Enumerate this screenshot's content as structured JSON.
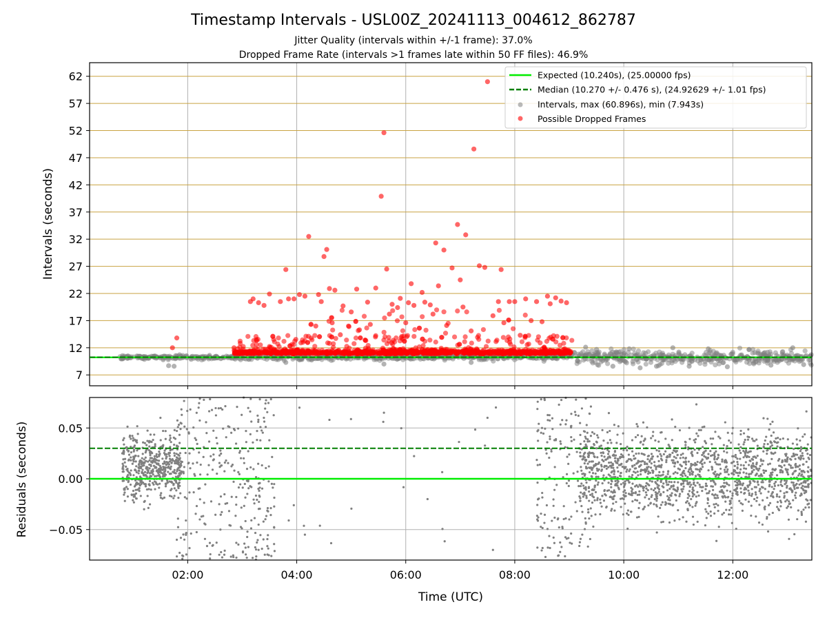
{
  "figure": {
    "title": "Timestamp Intervals - USL00Z_20241113_004612_862787",
    "subtitle_1": "Jitter Quality (intervals within +/-1 frame): 37.0%",
    "subtitle_2": "Dropped Frame Rate (intervals >1 frames late within 50 FF files): 46.9%"
  },
  "colors": {
    "expected": "#00ee00",
    "median": "#007f00",
    "intervals": "#808080",
    "dropped": "#ff0000",
    "hgrid_top": "#c8a240",
    "grid": "#b0b0b0"
  },
  "chart_data": [
    {
      "type": "scatter",
      "panel": "top",
      "ylabel": "Intervals (seconds)",
      "xlabel": "",
      "ylim": [
        5.0,
        64.5
      ],
      "xlim_hours": [
        0.2,
        13.45
      ],
      "yticks": [
        "7",
        "12",
        "17",
        "22",
        "27",
        "32",
        "37",
        "42",
        "47",
        "52",
        "57",
        "62"
      ],
      "ytick_values": [
        7,
        12,
        17,
        22,
        27,
        32,
        37,
        42,
        47,
        52,
        57,
        62
      ],
      "grid": "horizontal at every tick, vertical at every x tick",
      "legend_position": "top-right",
      "legend": [
        {
          "label": "Expected (10.240s), (25.00000 fps)",
          "kind": "solid-line"
        },
        {
          "label": "Median (10.270 +/- 0.476 s), (24.92629 +/- 1.01 fps)",
          "kind": "dashed-line"
        },
        {
          "label": "Intervals, max (60.896s), min (7.943s)",
          "kind": "grey-marker"
        },
        {
          "label": "Possible Dropped Frames",
          "kind": "red-marker"
        }
      ],
      "expected_interval": 10.24,
      "median_interval": 10.27,
      "series": [
        {
          "name": "Intervals, max (60.896s), min (7.943s)",
          "summary": "dense band near 10.2-10.5 s from 00:45 to 13:25; spread 8.2-12.5 s after 09:05",
          "points": [
            [
              1.3,
              10.3
            ],
            [
              1.55,
              9.8
            ],
            [
              1.65,
              8.7
            ],
            [
              1.75,
              8.6
            ],
            [
              1.85,
              10.7
            ],
            [
              2.4,
              10.6
            ],
            [
              3.0,
              10.7
            ],
            [
              3.8,
              9.3
            ],
            [
              5.6,
              9.0
            ],
            [
              7.2,
              9.3
            ],
            [
              9.15,
              9.6
            ],
            [
              9.3,
              12.1
            ],
            [
              9.5,
              11.7
            ],
            [
              9.8,
              8.6
            ],
            [
              10.1,
              11.8
            ],
            [
              10.3,
              8.3
            ],
            [
              10.6,
              8.6
            ],
            [
              10.9,
              12.0
            ],
            [
              11.2,
              8.6
            ],
            [
              11.55,
              11.8
            ],
            [
              11.9,
              8.5
            ],
            [
              12.3,
              11.7
            ],
            [
              12.7,
              8.8
            ],
            [
              13.1,
              12.0
            ],
            [
              13.3,
              8.9
            ]
          ]
        },
        {
          "name": "Possible Dropped Frames",
          "summary": "dense band ~10.5-11.5 s between 02:50 and 09:05 with outliers up to 60.9 s",
          "points": [
            [
              1.72,
              12.0
            ],
            [
              1.8,
              13.8
            ],
            [
              2.85,
              12.0
            ],
            [
              3.15,
              20.5
            ],
            [
              3.2,
              21.0
            ],
            [
              3.3,
              20.3
            ],
            [
              3.4,
              19.8
            ],
            [
              3.5,
              21.9
            ],
            [
              3.7,
              20.5
            ],
            [
              3.8,
              26.4
            ],
            [
              3.85,
              21.0
            ],
            [
              3.95,
              21.0
            ],
            [
              4.05,
              21.8
            ],
            [
              4.15,
              21.5
            ],
            [
              4.22,
              32.5
            ],
            [
              4.35,
              16.0
            ],
            [
              4.4,
              21.8
            ],
            [
              4.45,
              20.5
            ],
            [
              4.5,
              28.8
            ],
            [
              4.55,
              30.1
            ],
            [
              4.6,
              22.9
            ],
            [
              4.65,
              16.6
            ],
            [
              4.7,
              22.6
            ],
            [
              4.8,
              14.4
            ],
            [
              4.85,
              19.7
            ],
            [
              4.95,
              16.0
            ],
            [
              5.0,
              18.6
            ],
            [
              5.1,
              22.8
            ],
            [
              5.15,
              15.3
            ],
            [
              5.3,
              20.4
            ],
            [
              5.35,
              16.3
            ],
            [
              5.45,
              23.0
            ],
            [
              5.55,
              39.9
            ],
            [
              5.6,
              51.6
            ],
            [
              5.65,
              26.5
            ],
            [
              5.7,
              18.2
            ],
            [
              5.75,
              20.0
            ],
            [
              5.85,
              19.4
            ],
            [
              5.9,
              21.1
            ],
            [
              6.0,
              16.6
            ],
            [
              6.05,
              20.3
            ],
            [
              6.1,
              23.8
            ],
            [
              6.15,
              19.8
            ],
            [
              6.3,
              22.2
            ],
            [
              6.35,
              20.4
            ],
            [
              6.45,
              19.9
            ],
            [
              6.5,
              18.2
            ],
            [
              6.55,
              31.3
            ],
            [
              6.6,
              23.4
            ],
            [
              6.7,
              30.0
            ],
            [
              6.75,
              16.1
            ],
            [
              6.85,
              26.7
            ],
            [
              6.95,
              34.7
            ],
            [
              7.0,
              24.5
            ],
            [
              7.05,
              19.5
            ],
            [
              7.1,
              32.8
            ],
            [
              7.2,
              15.1
            ],
            [
              7.25,
              48.6
            ],
            [
              7.35,
              27.1
            ],
            [
              7.45,
              26.8
            ],
            [
              7.5,
              61.0
            ],
            [
              7.6,
              17.9
            ],
            [
              7.7,
              20.5
            ],
            [
              7.75,
              26.4
            ],
            [
              7.8,
              16.6
            ],
            [
              7.9,
              20.5
            ],
            [
              8.0,
              20.5
            ],
            [
              8.1,
              14.3
            ],
            [
              8.2,
              21.0
            ],
            [
              8.3,
              17.0
            ],
            [
              8.4,
              20.5
            ],
            [
              8.5,
              16.8
            ],
            [
              8.6,
              21.5
            ],
            [
              8.65,
              20.1
            ],
            [
              8.75,
              21.2
            ],
            [
              8.85,
              20.6
            ],
            [
              8.95,
              20.3
            ]
          ]
        }
      ]
    },
    {
      "type": "scatter",
      "panel": "bottom",
      "ylabel": "Residuals (seconds)",
      "xlabel": "Time (UTC)",
      "ylim": [
        -0.08,
        0.08
      ],
      "xlim_hours": [
        0.2,
        13.45
      ],
      "yticks": [
        "−0.05",
        "0.00",
        "0.05"
      ],
      "ytick_values": [
        -0.05,
        0.0,
        0.05
      ],
      "xticks": [
        "02:00",
        "04:00",
        "06:00",
        "08:00",
        "10:00",
        "12:00"
      ],
      "xtick_hours": [
        2,
        4,
        6,
        8,
        10,
        12
      ],
      "grid": true,
      "expected_residual": 0.0,
      "median_residual": 0.03,
      "series": [
        {
          "summary": "dense grey points in 00:45-03:35 and 08:30-13:25, sparse between",
          "points": [
            [
              0.8,
              0.025
            ],
            [
              0.9,
              -0.01
            ],
            [
              1.0,
              0.04
            ],
            [
              1.2,
              -0.03
            ],
            [
              1.5,
              0.06
            ],
            [
              1.8,
              -0.06
            ],
            [
              2.2,
              0.07
            ],
            [
              2.6,
              -0.05
            ],
            [
              3.0,
              0.03
            ],
            [
              3.3,
              -0.07
            ],
            [
              4.05,
              0.07
            ],
            [
              4.15,
              -0.055
            ],
            [
              4.6,
              0.058
            ],
            [
              5.6,
              0.065
            ],
            [
              6.4,
              -0.02
            ],
            [
              7.5,
              0.06
            ],
            [
              7.6,
              -0.07
            ],
            [
              8.5,
              0.05
            ],
            [
              9.0,
              -0.04
            ],
            [
              9.5,
              0.03
            ],
            [
              10.0,
              -0.02
            ],
            [
              10.5,
              0.04
            ],
            [
              11.0,
              0.01
            ],
            [
              11.5,
              -0.03
            ],
            [
              12.0,
              0.05
            ],
            [
              12.5,
              -0.01
            ],
            [
              13.0,
              0.02
            ]
          ]
        }
      ]
    }
  ]
}
